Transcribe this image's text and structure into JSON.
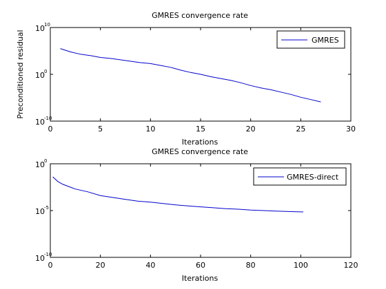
{
  "chart_data": [
    {
      "type": "line",
      "title": "GMRES convergence rate",
      "xlabel": "Iterations",
      "ylabel": "Preconditioned residual",
      "xlim": [
        0,
        30
      ],
      "ylim_exponent": [
        -10,
        10
      ],
      "yscale": "log",
      "xticks": [
        "0",
        "5",
        "10",
        "15",
        "20",
        "25",
        "30"
      ],
      "yticks": [
        {
          "base": "10",
          "exp": "10",
          "value": 10
        },
        {
          "base": "10",
          "exp": "0",
          "value": 0
        },
        {
          "base": "10",
          "exp": "-10",
          "value": -10
        }
      ],
      "legend_position": "top-right",
      "grid": false,
      "series": [
        {
          "name": "GMRES",
          "color": "#0000cc",
          "x": [
            1,
            2,
            3,
            4,
            5,
            6,
            7,
            8,
            9,
            10,
            11,
            12,
            13,
            14,
            15,
            16,
            17,
            18,
            19,
            20,
            21,
            22,
            23,
            24,
            25,
            26,
            27
          ],
          "log10_y": [
            5.5,
            4.8,
            4.3,
            4.0,
            3.6,
            3.4,
            3.1,
            2.8,
            2.5,
            2.3,
            1.9,
            1.5,
            0.9,
            0.4,
            0.0,
            -0.5,
            -0.9,
            -1.3,
            -1.8,
            -2.4,
            -2.9,
            -3.3,
            -3.8,
            -4.3,
            -4.9,
            -5.4,
            -5.9
          ]
        }
      ]
    },
    {
      "type": "line",
      "title": "GMRES convergence rate",
      "xlabel": "Iterations",
      "ylabel": "",
      "xlim": [
        0,
        120
      ],
      "ylim_exponent": [
        -10,
        0
      ],
      "yscale": "log",
      "xticks": [
        "0",
        "20",
        "40",
        "60",
        "80",
        "100",
        "120"
      ],
      "yticks": [
        {
          "base": "10",
          "exp": "0",
          "value": 0
        },
        {
          "base": "10",
          "exp": "-5",
          "value": -5
        },
        {
          "base": "10",
          "exp": "-10",
          "value": -10
        }
      ],
      "legend_position": "top-right",
      "grid": false,
      "series": [
        {
          "name": "GMRES-direct",
          "color": "#0000cc",
          "x": [
            1,
            3,
            5,
            8,
            10,
            15,
            20,
            25,
            30,
            35,
            40,
            45,
            50,
            55,
            60,
            65,
            70,
            75,
            80,
            85,
            90,
            95,
            101
          ],
          "log10_y": [
            -1.4,
            -1.9,
            -2.2,
            -2.5,
            -2.7,
            -3.0,
            -3.4,
            -3.6,
            -3.8,
            -4.0,
            -4.1,
            -4.25,
            -4.4,
            -4.5,
            -4.6,
            -4.7,
            -4.8,
            -4.85,
            -4.95,
            -5.0,
            -5.05,
            -5.1,
            -5.15
          ]
        }
      ]
    }
  ]
}
